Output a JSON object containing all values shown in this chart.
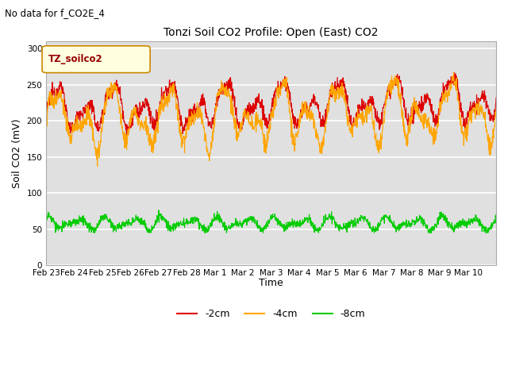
{
  "title": "Tonzi Soil CO2 Profile: Open (East) CO2",
  "subtitle": "No data for f_CO2E_4",
  "ylabel": "Soil CO2 (mV)",
  "xlabel": "Time",
  "legend_label": "TZ_soilco2",
  "ylim": [
    0,
    310
  ],
  "yticks": [
    0,
    50,
    100,
    150,
    200,
    250,
    300
  ],
  "bg_color": "#e0e0e0",
  "line_colors": {
    "-2cm": "#dd0000",
    "-4cm": "#ffa500",
    "-8cm": "#00cc00"
  },
  "tick_labels": [
    "Feb 23",
    "Feb 24",
    "Feb 25",
    "Feb 26",
    "Feb 27",
    "Feb 28",
    "Mar 1",
    "Mar 2",
    "Mar 3",
    "Mar 4",
    "Mar 5",
    "Mar 6",
    "Mar 7",
    "Mar 8",
    "Mar 9",
    "Mar 10"
  ],
  "n_days": 16
}
